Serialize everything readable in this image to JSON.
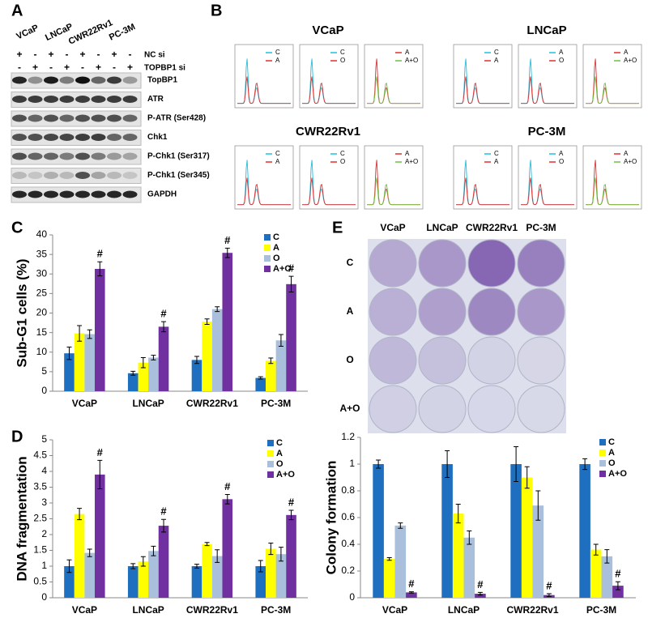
{
  "panel_labels": [
    "A",
    "B",
    "C",
    "D",
    "E"
  ],
  "panel_a": {
    "cell_lines": [
      "VCaP",
      "LNCaP",
      "CWR22Rv1",
      "PC-3M"
    ],
    "treatments": [
      {
        "name": "NC si",
        "signs": [
          "+",
          "-",
          "+",
          "-",
          "+",
          "-",
          "+",
          "-"
        ]
      },
      {
        "name": "TOPBP1 si",
        "signs": [
          "-",
          "+",
          "-",
          "+",
          "-",
          "+",
          "-",
          "+"
        ]
      }
    ],
    "blots": [
      "TopBP1",
      "ATR",
      "P-ATR (Ser428)",
      "Chk1",
      "P-Chk1 (Ser317)",
      "P-Chk1 (Ser345)",
      "GAPDH"
    ]
  },
  "panel_b": {
    "groups": [
      {
        "title": "VCaP",
        "legends": [
          [
            "C",
            "A"
          ],
          [
            "C",
            "O"
          ],
          [
            "A",
            "A+O"
          ]
        ]
      },
      {
        "title": "LNCaP",
        "legends": [
          [
            "C",
            "A"
          ],
          [
            "A",
            "O"
          ],
          [
            "A",
            "A+O"
          ]
        ]
      },
      {
        "title": "CWR22Rv1",
        "legends": [
          [
            "C",
            "A"
          ],
          [
            "C",
            "O"
          ],
          [
            "A",
            "A+O"
          ]
        ]
      },
      {
        "title": "PC-3M",
        "legends": [
          [
            "C",
            "A"
          ],
          [
            "A",
            "O"
          ],
          [
            "A",
            "A+O"
          ]
        ]
      }
    ]
  },
  "panel_e": {
    "columns": [
      "VCaP",
      "LNCaP",
      "CWR22Rv1",
      "PC-3M"
    ],
    "rows": [
      "C",
      "A",
      "O",
      "A+O"
    ]
  },
  "chart_data": [
    {
      "type": "bar",
      "y_label": "Sub-G1 cells (%)",
      "categories": [
        "VCaP",
        "LNCaP",
        "CWR22Rv1",
        "PC-3M"
      ],
      "series": [
        {
          "name": "C",
          "color": "#1f6fc1",
          "values": [
            9.7,
            4.6,
            8.0,
            3.4
          ],
          "errors": [
            1.6,
            0.5,
            0.9,
            0.3
          ]
        },
        {
          "name": "A",
          "color": "#ffff00",
          "values": [
            14.8,
            7.3,
            17.8,
            7.8
          ],
          "errors": [
            2.0,
            1.3,
            0.7,
            0.7
          ]
        },
        {
          "name": "O",
          "color": "#a9bfdc",
          "values": [
            14.6,
            8.6,
            21.0,
            13.0
          ],
          "errors": [
            1.1,
            0.6,
            0.6,
            1.5
          ]
        },
        {
          "name": "A+O",
          "color": "#7030a0",
          "values": [
            31.3,
            16.5,
            35.4,
            27.4
          ],
          "errors": [
            1.8,
            1.3,
            1.2,
            2.0
          ]
        }
      ],
      "annotations": [
        "#",
        "#",
        "#",
        "#"
      ],
      "ylim": [
        0,
        40
      ],
      "yticks": [
        0,
        5,
        10,
        15,
        20,
        25,
        30,
        35,
        40
      ],
      "legend": "upper right"
    },
    {
      "type": "bar",
      "y_label": "DNA fragmentation",
      "categories": [
        "VCaP",
        "LNCaP",
        "CWR22Rv1",
        "PC-3M"
      ],
      "series": [
        {
          "name": "C",
          "color": "#1f6fc1",
          "values": [
            1.0,
            1.0,
            1.0,
            1.0
          ],
          "errors": [
            0.2,
            0.08,
            0.06,
            0.18
          ]
        },
        {
          "name": "A",
          "color": "#ffff00",
          "values": [
            2.65,
            1.15,
            1.7,
            1.55
          ],
          "errors": [
            0.18,
            0.15,
            0.05,
            0.18
          ]
        },
        {
          "name": "O",
          "color": "#a9bfdc",
          "values": [
            1.42,
            1.48,
            1.32,
            1.38
          ],
          "errors": [
            0.12,
            0.15,
            0.2,
            0.22
          ]
        },
        {
          "name": "A+O",
          "color": "#7030a0",
          "values": [
            3.9,
            2.28,
            3.12,
            2.62
          ],
          "errors": [
            0.45,
            0.2,
            0.15,
            0.15
          ]
        }
      ],
      "annotations": [
        "#",
        "#",
        "#",
        "#"
      ],
      "ylim": [
        0,
        5
      ],
      "yticks": [
        0,
        0.5,
        1,
        1.5,
        2,
        2.5,
        3,
        3.5,
        4,
        4.5,
        5
      ],
      "legend": "upper right"
    },
    {
      "type": "bar",
      "y_label": "Colony formation",
      "categories": [
        "VCaP",
        "LNCaP",
        "CWR22Rv1",
        "PC-3M"
      ],
      "series": [
        {
          "name": "C",
          "color": "#1f6fc1",
          "values": [
            1,
            1,
            1,
            1
          ],
          "errors": [
            0.03,
            0.1,
            0.13,
            0.04
          ]
        },
        {
          "name": "A",
          "color": "#ffff00",
          "values": [
            0.29,
            0.63,
            0.9,
            0.36
          ],
          "errors": [
            0.01,
            0.07,
            0.08,
            0.04
          ]
        },
        {
          "name": "O",
          "color": "#a9bfdc",
          "values": [
            0.54,
            0.45,
            0.69,
            0.31
          ],
          "errors": [
            0.02,
            0.05,
            0.11,
            0.05
          ]
        },
        {
          "name": "A+O",
          "color": "#7030a0",
          "values": [
            0.04,
            0.03,
            0.02,
            0.09
          ],
          "errors": [
            0.005,
            0.01,
            0.01,
            0.03
          ]
        }
      ],
      "annotations": [
        "#",
        "#",
        "#",
        "#"
      ],
      "ylim": [
        0,
        1.2
      ],
      "yticks": [
        0,
        0.2,
        0.4,
        0.6,
        0.8,
        1,
        1.2
      ],
      "legend": "upper right"
    }
  ]
}
